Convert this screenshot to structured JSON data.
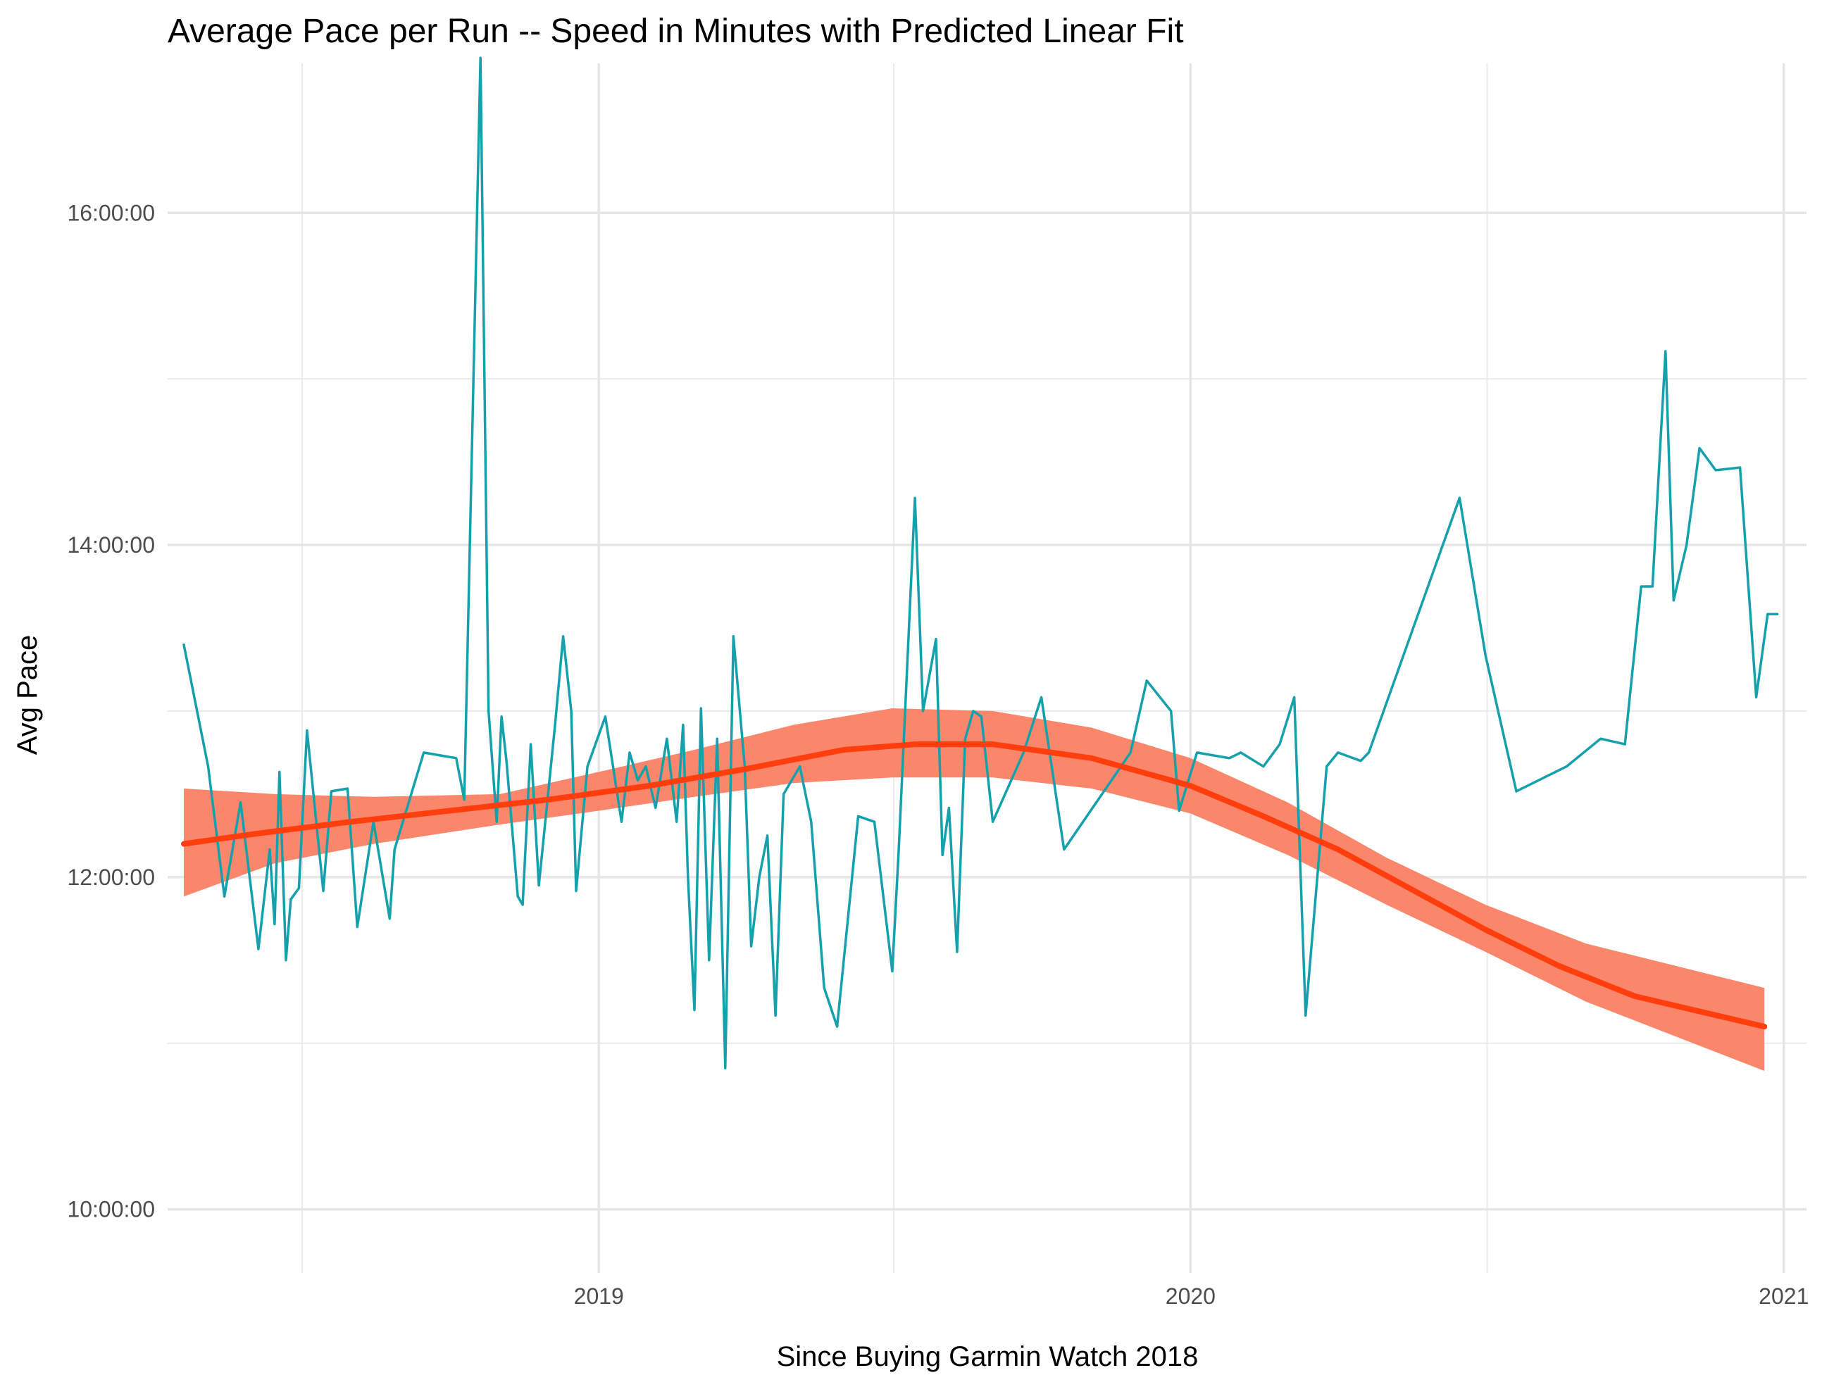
{
  "chart_data": {
    "type": "line",
    "title": "Average Pace per Run -- Speed in Minutes with Predicted Linear Fit",
    "xlabel": "Since Buying Garmin Watch 2018",
    "ylabel": "Avg Pace",
    "x_axis": {
      "type": "date",
      "range": [
        "2018-04-10",
        "2021-01-15"
      ],
      "ticks": [
        "2019",
        "2020",
        "2021"
      ]
    },
    "y_axis": {
      "type": "duration",
      "range": [
        "9:37:00",
        "16:54:00"
      ],
      "ticks": [
        "10:00:00",
        "12:00:00",
        "14:00:00",
        "16:00:00"
      ]
    },
    "grid": true,
    "legend": "none",
    "series": [
      {
        "color": "#14A1AC",
        "points": [
          [
            "2018-04-20",
            "13:24:00"
          ],
          [
            "2018-05-05",
            "12:40:00"
          ],
          [
            "2018-05-15",
            "11:53:00"
          ],
          [
            "2018-05-25",
            "12:27:00"
          ],
          [
            "2018-06-05",
            "11:34:00"
          ],
          [
            "2018-06-12",
            "12:10:00"
          ],
          [
            "2018-06-15",
            "11:43:00"
          ],
          [
            "2018-06-18",
            "12:38:00"
          ],
          [
            "2018-06-22",
            "11:30:00"
          ],
          [
            "2018-06-25",
            "11:52:00"
          ],
          [
            "2018-06-30",
            "11:56:00"
          ],
          [
            "2018-07-05",
            "12:53:00"
          ],
          [
            "2018-07-15",
            "11:55:00"
          ],
          [
            "2018-07-20",
            "12:31:00"
          ],
          [
            "2018-07-30",
            "12:32:00"
          ],
          [
            "2018-08-05",
            "11:42:00"
          ],
          [
            "2018-08-15",
            "12:20:00"
          ],
          [
            "2018-08-25",
            "11:45:00"
          ],
          [
            "2018-08-28",
            "12:10:00"
          ],
          [
            "2018-09-15",
            "12:45:00"
          ],
          [
            "2018-10-05",
            "12:43:00"
          ],
          [
            "2018-10-10",
            "12:28:00"
          ],
          [
            "2018-10-20",
            "16:56:00"
          ],
          [
            "2018-10-25",
            "13:00:00"
          ],
          [
            "2018-10-30",
            "12:20:00"
          ],
          [
            "2018-11-02",
            "12:58:00"
          ],
          [
            "2018-11-05",
            "12:42:00"
          ],
          [
            "2018-11-12",
            "11:53:00"
          ],
          [
            "2018-11-15",
            "11:50:00"
          ],
          [
            "2018-11-20",
            "12:48:00"
          ],
          [
            "2018-11-25",
            "11:57:00"
          ],
          [
            "2018-12-05",
            "12:55:00"
          ],
          [
            "2018-12-10",
            "13:27:00"
          ],
          [
            "2018-12-15",
            "13:00:00"
          ],
          [
            "2018-12-18",
            "11:55:00"
          ],
          [
            "2018-12-25",
            "12:40:00"
          ],
          [
            "2019-01-05",
            "12:58:00"
          ],
          [
            "2019-01-15",
            "12:20:00"
          ],
          [
            "2019-01-20",
            "12:45:00"
          ],
          [
            "2019-01-25",
            "12:35:00"
          ],
          [
            "2019-01-30",
            "12:40:00"
          ],
          [
            "2019-02-05",
            "12:25:00"
          ],
          [
            "2019-02-12",
            "12:50:00"
          ],
          [
            "2019-02-18",
            "12:20:00"
          ],
          [
            "2019-02-22",
            "12:55:00"
          ],
          [
            "2019-02-25",
            "12:00:00"
          ],
          [
            "2019-03-01",
            "11:12:00"
          ],
          [
            "2019-03-05",
            "13:01:00"
          ],
          [
            "2019-03-10",
            "11:30:00"
          ],
          [
            "2019-03-15",
            "12:50:00"
          ],
          [
            "2019-03-20",
            "10:51:00"
          ],
          [
            "2019-03-25",
            "13:27:00"
          ],
          [
            "2019-04-01",
            "12:40:00"
          ],
          [
            "2019-04-05",
            "11:35:00"
          ],
          [
            "2019-04-10",
            "12:00:00"
          ],
          [
            "2019-04-15",
            "12:15:00"
          ],
          [
            "2019-04-20",
            "11:10:00"
          ],
          [
            "2019-04-25",
            "12:30:00"
          ],
          [
            "2019-05-05",
            "12:40:00"
          ],
          [
            "2019-05-12",
            "12:20:00"
          ],
          [
            "2019-05-20",
            "11:20:00"
          ],
          [
            "2019-05-28",
            "11:06:00"
          ],
          [
            "2019-06-10",
            "12:22:00"
          ],
          [
            "2019-06-20",
            "12:20:00"
          ],
          [
            "2019-07-01",
            "11:26:00"
          ],
          [
            "2019-07-05",
            "12:10:00"
          ],
          [
            "2019-07-15",
            "14:17:00"
          ],
          [
            "2019-07-20",
            "13:00:00"
          ],
          [
            "2019-07-28",
            "13:26:00"
          ],
          [
            "2019-08-01",
            "12:08:00"
          ],
          [
            "2019-08-05",
            "12:25:00"
          ],
          [
            "2019-08-10",
            "11:33:00"
          ],
          [
            "2019-08-15",
            "12:50:00"
          ],
          [
            "2019-08-20",
            "13:00:00"
          ],
          [
            "2019-08-25",
            "12:58:00"
          ],
          [
            "2019-09-01",
            "12:20:00"
          ],
          [
            "2019-09-20",
            "12:45:00"
          ],
          [
            "2019-10-01",
            "13:05:00"
          ],
          [
            "2019-10-15",
            "12:10:00"
          ],
          [
            "2019-11-25",
            "12:45:00"
          ],
          [
            "2019-12-05",
            "13:11:00"
          ],
          [
            "2019-12-20",
            "13:00:00"
          ],
          [
            "2019-12-25",
            "12:24:00"
          ],
          [
            "2020-01-05",
            "12:45:00"
          ],
          [
            "2020-01-25",
            "12:43:00"
          ],
          [
            "2020-02-01",
            "12:45:00"
          ],
          [
            "2020-02-15",
            "12:40:00"
          ],
          [
            "2020-02-25",
            "12:48:00"
          ],
          [
            "2020-03-05",
            "13:05:00"
          ],
          [
            "2020-03-12",
            "11:10:00"
          ],
          [
            "2020-03-25",
            "12:40:00"
          ],
          [
            "2020-04-01",
            "12:45:00"
          ],
          [
            "2020-04-15",
            "12:42:00"
          ],
          [
            "2020-04-20",
            "12:45:00"
          ],
          [
            "2020-06-15",
            "14:17:00"
          ],
          [
            "2020-07-01",
            "13:20:00"
          ],
          [
            "2020-07-20",
            "12:31:00"
          ],
          [
            "2020-08-20",
            "12:40:00"
          ],
          [
            "2020-09-10",
            "12:50:00"
          ],
          [
            "2020-09-25",
            "12:48:00"
          ],
          [
            "2020-10-05",
            "13:45:00"
          ],
          [
            "2020-10-12",
            "13:45:00"
          ],
          [
            "2020-10-20",
            "15:10:00"
          ],
          [
            "2020-10-25",
            "13:40:00"
          ],
          [
            "2020-11-02",
            "14:00:00"
          ],
          [
            "2020-11-10",
            "14:35:00"
          ],
          [
            "2020-11-20",
            "14:27:00"
          ],
          [
            "2020-12-05",
            "14:28:00"
          ],
          [
            "2020-12-15",
            "13:05:00"
          ],
          [
            "2020-12-22",
            "13:35:00"
          ],
          [
            "2020-12-28",
            "13:35:00"
          ]
        ]
      },
      {
        "color": "#FF3D0D",
        "points": [
          [
            "2018-04-20",
            "12:12:00"
          ],
          [
            "2018-06-01",
            "12:15:30"
          ],
          [
            "2018-08-01",
            "12:20:00"
          ],
          [
            "2018-10-01",
            "12:24:00"
          ],
          [
            "2018-12-01",
            "12:28:00"
          ],
          [
            "2019-02-01",
            "12:33:00"
          ],
          [
            "2019-04-01",
            "12:39:00"
          ],
          [
            "2019-06-01",
            "12:46:00"
          ],
          [
            "2019-07-15",
            "12:48:00"
          ],
          [
            "2019-09-01",
            "12:48:00"
          ],
          [
            "2019-11-01",
            "12:43:00"
          ],
          [
            "2020-01-01",
            "12:33:00"
          ],
          [
            "2020-02-15",
            "12:22:00"
          ],
          [
            "2020-04-01",
            "12:10:00"
          ],
          [
            "2020-05-15",
            "11:56:00"
          ],
          [
            "2020-07-01",
            "11:41:00"
          ],
          [
            "2020-08-15",
            "11:28:00"
          ],
          [
            "2020-10-01",
            "11:17:00"
          ],
          [
            "2020-12-20",
            "11:06:00"
          ]
        ]
      }
    ],
    "confidence_band": {
      "color": "#FA8063",
      "points": [
        [
          "2018-04-20",
          "11:53:00",
          "12:32:00"
        ],
        [
          "2018-06-15",
          "12:05:00",
          "12:30:00"
        ],
        [
          "2018-08-15",
          "12:12:00",
          "12:29:00"
        ],
        [
          "2018-11-01",
          "12:19:00",
          "12:30:00"
        ],
        [
          "2019-01-01",
          "12:24:00",
          "12:38:00"
        ],
        [
          "2019-03-01",
          "12:29:00",
          "12:46:00"
        ],
        [
          "2019-05-01",
          "12:34:00",
          "12:55:00"
        ],
        [
          "2019-07-01",
          "12:36:00",
          "13:01:00"
        ],
        [
          "2019-09-01",
          "12:36:00",
          "13:00:00"
        ],
        [
          "2019-11-01",
          "12:32:00",
          "12:54:00"
        ],
        [
          "2020-01-01",
          "12:23:00",
          "12:43:00"
        ],
        [
          "2020-03-01",
          "12:08:00",
          "12:27:00"
        ],
        [
          "2020-05-01",
          "11:50:00",
          "12:07:00"
        ],
        [
          "2020-07-01",
          "11:33:00",
          "11:50:00"
        ],
        [
          "2020-09-01",
          "11:15:00",
          "11:36:00"
        ],
        [
          "2020-12-20",
          "10:50:00",
          "11:20:00"
        ]
      ]
    }
  }
}
